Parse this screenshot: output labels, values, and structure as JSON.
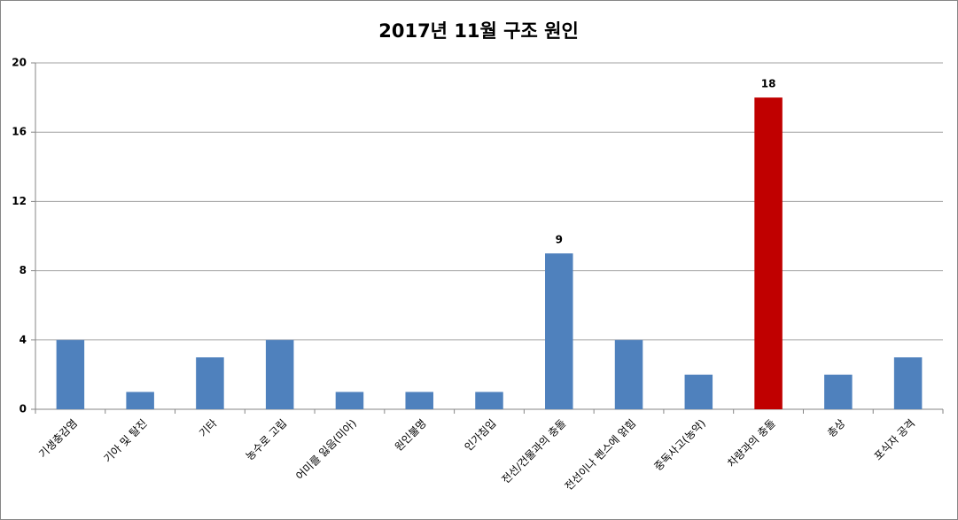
{
  "chart_data": {
    "type": "bar",
    "title": "2017년 11월 구조 원인",
    "categories": [
      "기생충감염",
      "기아 및 탈진",
      "기타",
      "농수로 고립",
      "어미를 잃음(미아)",
      "원인불명",
      "인가침입",
      "전선/건물과의 충돌",
      "전선이나 펜스에 얽힘",
      "중독사고(농약)",
      "차량과의 충돌",
      "총상",
      "포식자 공격"
    ],
    "values": [
      4,
      1,
      3,
      4,
      1,
      1,
      1,
      9,
      4,
      2,
      18,
      2,
      3
    ],
    "value_labels": [
      null,
      null,
      null,
      null,
      null,
      null,
      null,
      "9",
      null,
      null,
      "18",
      null,
      null
    ],
    "colors": [
      "#4f81bd",
      "#4f81bd",
      "#4f81bd",
      "#4f81bd",
      "#4f81bd",
      "#4f81bd",
      "#4f81bd",
      "#4f81bd",
      "#4f81bd",
      "#4f81bd",
      "#c00000",
      "#4f81bd",
      "#4f81bd"
    ],
    "ylim": [
      0,
      20
    ],
    "yticks": [
      0,
      4,
      8,
      12,
      16,
      20
    ],
    "grid": true
  }
}
